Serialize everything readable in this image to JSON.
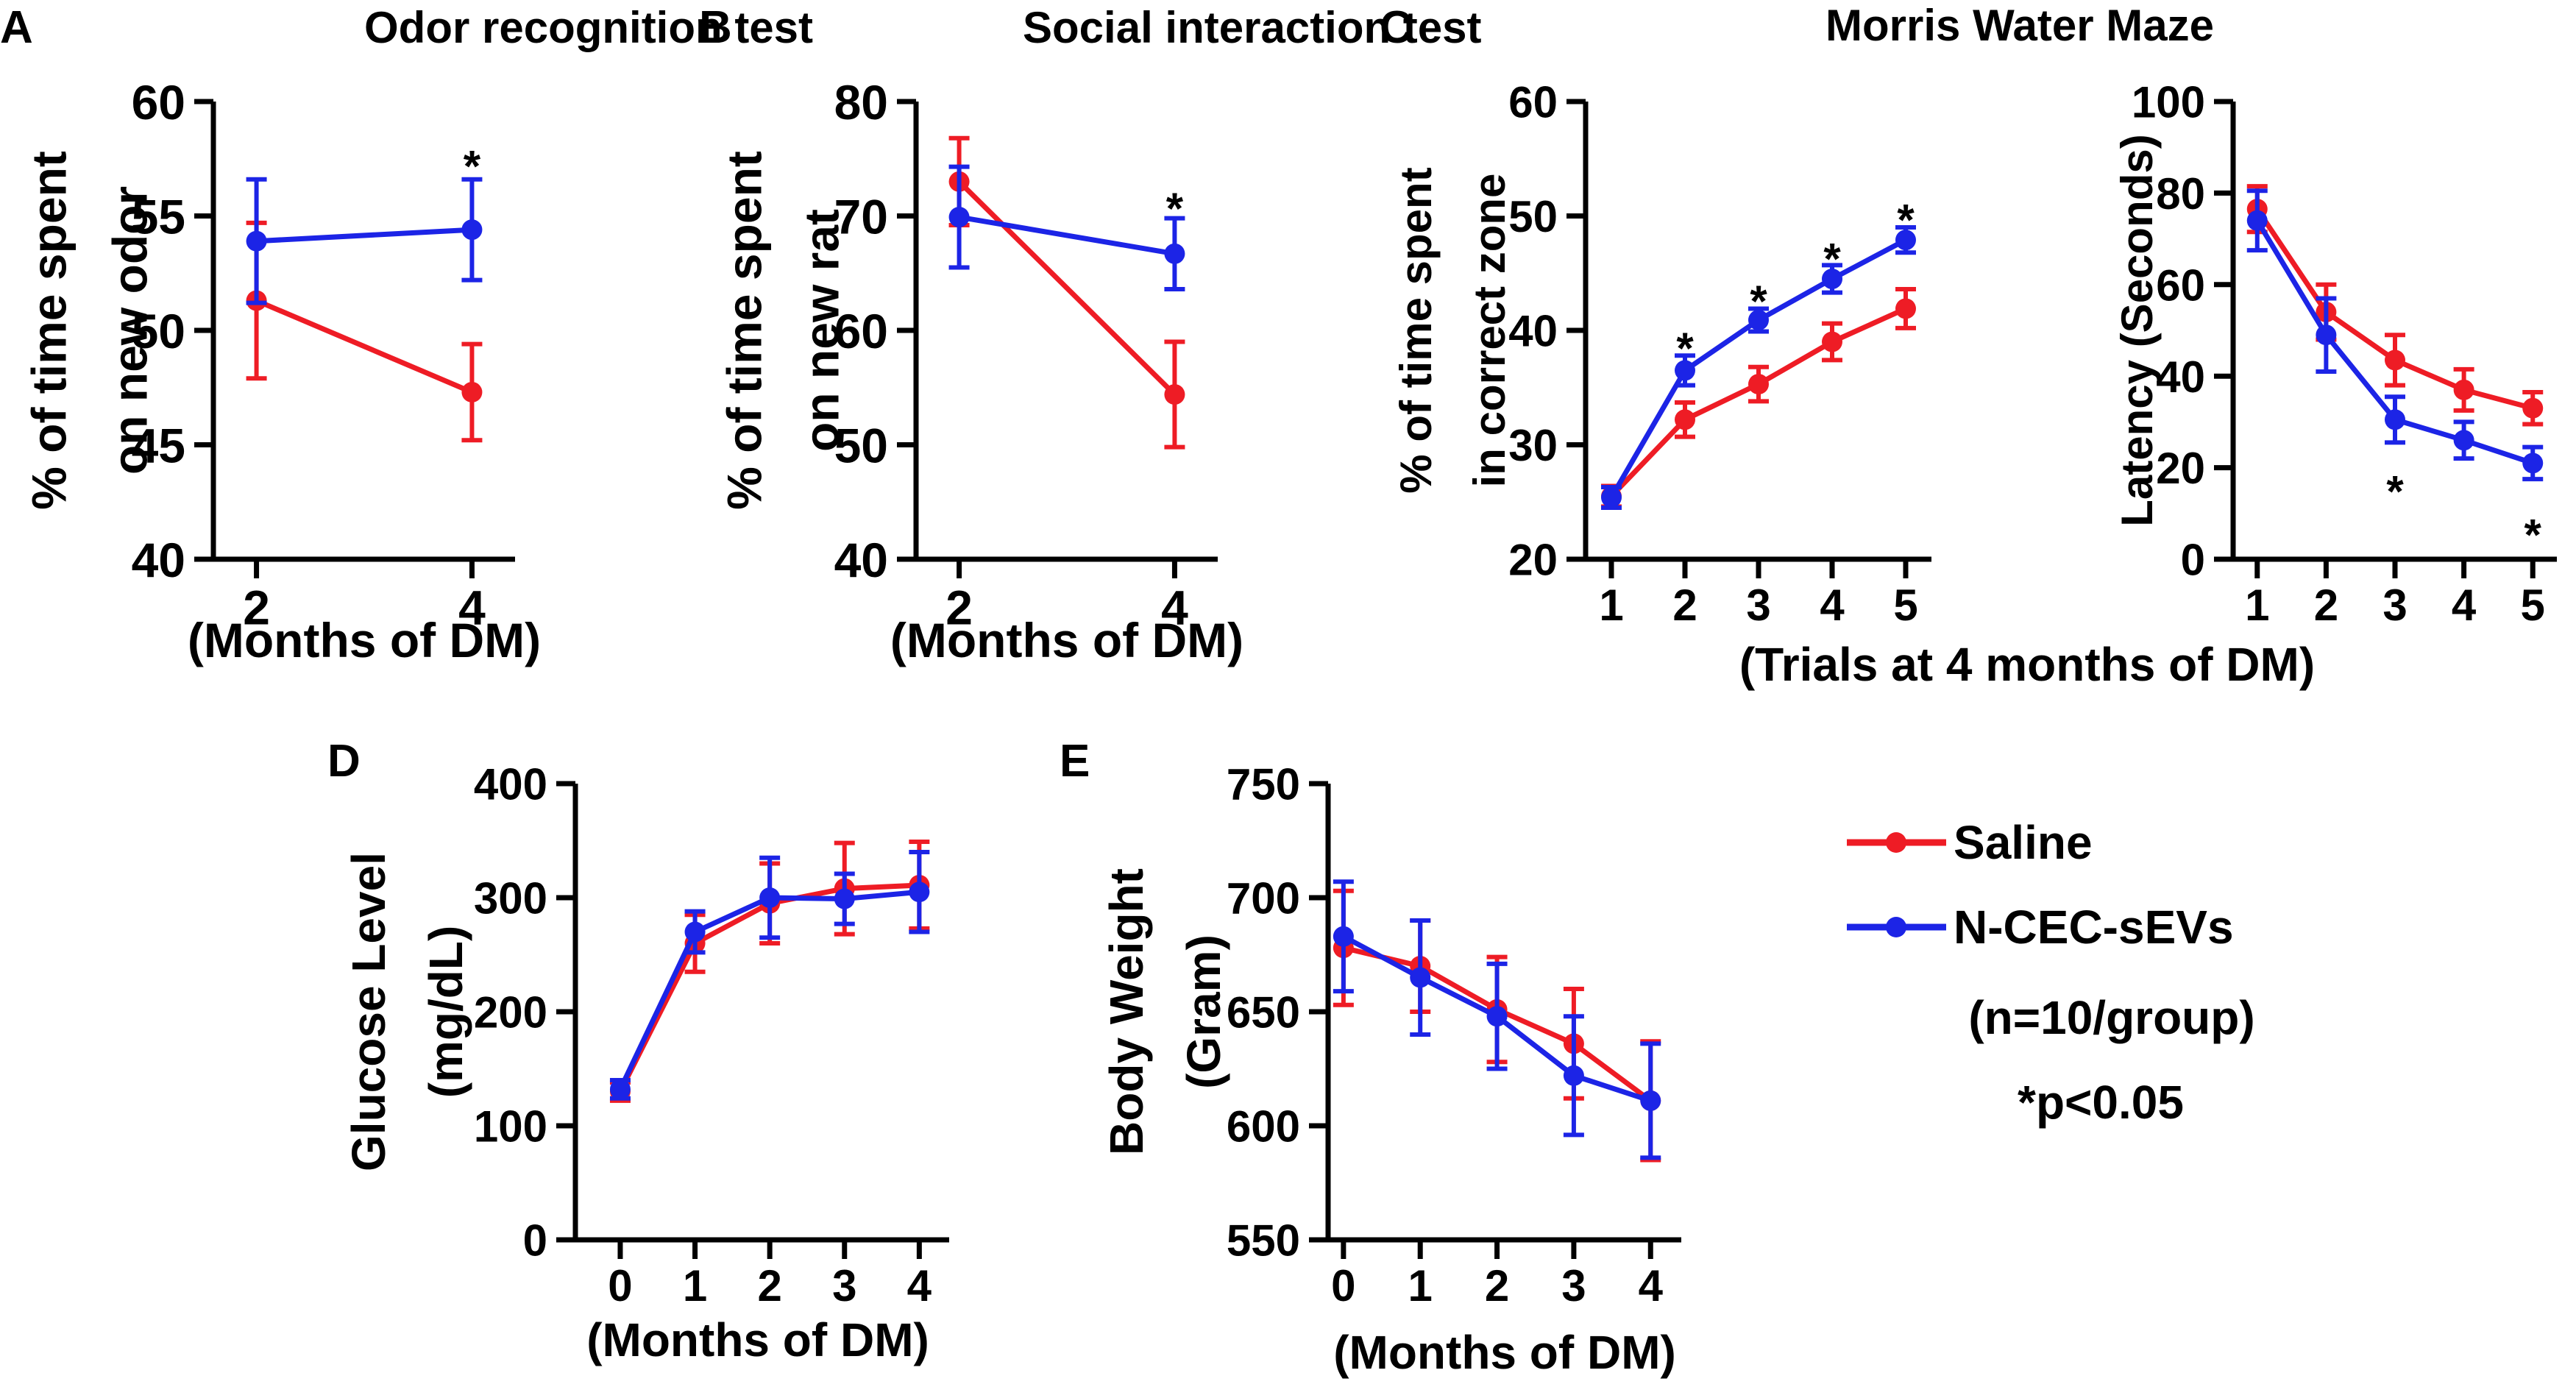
{
  "figure": {
    "series_colors": {
      "saline": "#ee1c25",
      "ncec": "#1c24e6"
    },
    "legend": {
      "saline_label": "Saline",
      "ncec_label": "N-CEC-sEVs",
      "n_label": "(n=10/group)",
      "p_label": "*p<0.05"
    }
  },
  "chart_data": [
    {
      "id": "A",
      "type": "line",
      "panel_letter": "A",
      "title": "Odor recognition test",
      "xlabel": "(Months of DM)",
      "ylabel": [
        "% of time spent",
        "on new odor"
      ],
      "ylim": [
        40,
        60
      ],
      "yticks": [
        40,
        45,
        50,
        55,
        60
      ],
      "xlim": [
        1.6,
        4.4
      ],
      "xticks": [
        2,
        4
      ],
      "series": [
        {
          "name": "Saline",
          "color": "#ee1c25",
          "x": [
            2,
            4
          ],
          "values": [
            51.3,
            47.3
          ],
          "err": [
            3.4,
            2.1
          ]
        },
        {
          "name": "N-CEC-sEVs",
          "color": "#1c24e6",
          "x": [
            2,
            4
          ],
          "values": [
            53.9,
            54.4
          ],
          "err": [
            2.7,
            2.2
          ]
        }
      ],
      "annotations": [
        {
          "text": "*",
          "x": 4,
          "y": 57.6
        }
      ]
    },
    {
      "id": "B",
      "type": "line",
      "panel_letter": "B",
      "title": "Social interaction test",
      "xlabel": "(Months of DM)",
      "ylabel": [
        "% of time spent",
        "on new rat"
      ],
      "ylim": [
        40,
        80
      ],
      "yticks": [
        40,
        50,
        60,
        70,
        80
      ],
      "xlim": [
        1.6,
        4.4
      ],
      "xticks": [
        2,
        4
      ],
      "series": [
        {
          "name": "Saline",
          "color": "#ee1c25",
          "x": [
            2,
            4
          ],
          "values": [
            73.0,
            54.4
          ],
          "err": [
            3.8,
            4.6
          ]
        },
        {
          "name": "N-CEC-sEVs",
          "color": "#1c24e6",
          "x": [
            2,
            4
          ],
          "values": [
            69.9,
            66.7
          ],
          "err": [
            4.4,
            3.1
          ]
        }
      ],
      "annotations": [
        {
          "text": "*",
          "x": 4,
          "y": 71.5
        }
      ]
    },
    {
      "id": "C1",
      "type": "line",
      "panel_letter": "C",
      "title": "",
      "xlabel": "",
      "ylabel": [
        "% of time spent",
        "in correct zone"
      ],
      "ylim": [
        20,
        60
      ],
      "yticks": [
        20,
        30,
        40,
        50,
        60
      ],
      "xlim": [
        0.65,
        5.35
      ],
      "xticks": [
        1,
        2,
        3,
        4,
        5
      ],
      "series": [
        {
          "name": "Saline",
          "color": "#ee1c25",
          "x": [
            1,
            2,
            3,
            4,
            5
          ],
          "values": [
            25.5,
            32.2,
            35.3,
            39.0,
            41.9
          ],
          "err": [
            0.9,
            1.5,
            1.5,
            1.6,
            1.7
          ]
        },
        {
          "name": "N-CEC-sEVs",
          "color": "#1c24e6",
          "x": [
            1,
            2,
            3,
            4,
            5
          ],
          "values": [
            25.4,
            36.5,
            40.9,
            44.5,
            47.9
          ],
          "err": [
            0.9,
            1.3,
            1.0,
            1.2,
            1.1
          ]
        }
      ],
      "annotations": [
        {
          "text": "*",
          "x": 2,
          "y": 39.3
        },
        {
          "text": "*",
          "x": 3,
          "y": 43.4
        },
        {
          "text": "*",
          "x": 4,
          "y": 47.1
        },
        {
          "text": "*",
          "x": 5,
          "y": 50.5
        }
      ]
    },
    {
      "id": "C2",
      "type": "line",
      "title": "",
      "xlabel": "",
      "ylabel": [
        "Latency (Seconds)"
      ],
      "ylim": [
        0,
        100
      ],
      "yticks": [
        0,
        20,
        40,
        60,
        80,
        100
      ],
      "xlim": [
        0.65,
        5.35
      ],
      "xticks": [
        1,
        2,
        3,
        4,
        5
      ],
      "series": [
        {
          "name": "Saline",
          "color": "#ee1c25",
          "x": [
            1,
            2,
            3,
            4,
            5
          ],
          "values": [
            76.5,
            54.0,
            43.5,
            37.0,
            33.0
          ],
          "err": [
            5.0,
            6.0,
            5.5,
            4.5,
            3.5
          ]
        },
        {
          "name": "N-CEC-sEVs",
          "color": "#1c24e6",
          "x": [
            1,
            2,
            3,
            4,
            5
          ],
          "values": [
            74.0,
            49.0,
            30.5,
            26.0,
            21.0
          ],
          "err": [
            6.5,
            8.0,
            5.0,
            4.0,
            3.5
          ]
        }
      ],
      "annotations": [
        {
          "text": "*",
          "x": 3,
          "y": 17.0
        },
        {
          "text": "*",
          "x": 5,
          "y": 7.5
        }
      ]
    },
    {
      "id": "D",
      "type": "line",
      "panel_letter": "D",
      "title": "",
      "xlabel": "(Months of DM)",
      "ylabel": [
        "Glucose Level",
        "(mg/dL)"
      ],
      "ylim": [
        0,
        400
      ],
      "yticks": [
        0,
        100,
        200,
        300,
        400
      ],
      "xlim": [
        -0.6,
        4.4
      ],
      "xticks": [
        0,
        1,
        2,
        3,
        4
      ],
      "series": [
        {
          "name": "Saline",
          "color": "#ee1c25",
          "x": [
            0,
            1,
            2,
            3,
            4
          ],
          "values": [
            130,
            260,
            295,
            308,
            311
          ],
          "err": [
            8,
            25,
            35,
            40,
            38
          ]
        },
        {
          "name": "N-CEC-sEVs",
          "color": "#1c24e6",
          "x": [
            0,
            1,
            2,
            3,
            4
          ],
          "values": [
            132,
            270,
            300,
            299,
            305
          ],
          "err": [
            8,
            18,
            35,
            22,
            35
          ]
        }
      ]
    },
    {
      "id": "E",
      "type": "line",
      "panel_letter": "E",
      "title": "",
      "xlabel": "(Months of DM)",
      "ylabel": [
        "Body Weight",
        "(Gram)"
      ],
      "ylim": [
        550,
        750
      ],
      "yticks": [
        550,
        600,
        650,
        700,
        750
      ],
      "xlim": [
        -0.2,
        4.4
      ],
      "xticks": [
        0,
        1,
        2,
        3,
        4
      ],
      "series": [
        {
          "name": "Saline",
          "color": "#ee1c25",
          "x": [
            0,
            1,
            2,
            3,
            4
          ],
          "values": [
            678,
            670,
            651,
            636,
            611
          ],
          "err": [
            25,
            20,
            23,
            24,
            26
          ]
        },
        {
          "name": "N-CEC-sEVs",
          "color": "#1c24e6",
          "x": [
            0,
            1,
            2,
            3,
            4
          ],
          "values": [
            683,
            665,
            648,
            622,
            611
          ],
          "err": [
            24,
            25,
            23,
            26,
            25
          ]
        }
      ]
    }
  ],
  "shared_labels": {
    "maze_title": "Morris Water Maze",
    "maze_xlabel": "(Trials at 4 months of DM)"
  }
}
